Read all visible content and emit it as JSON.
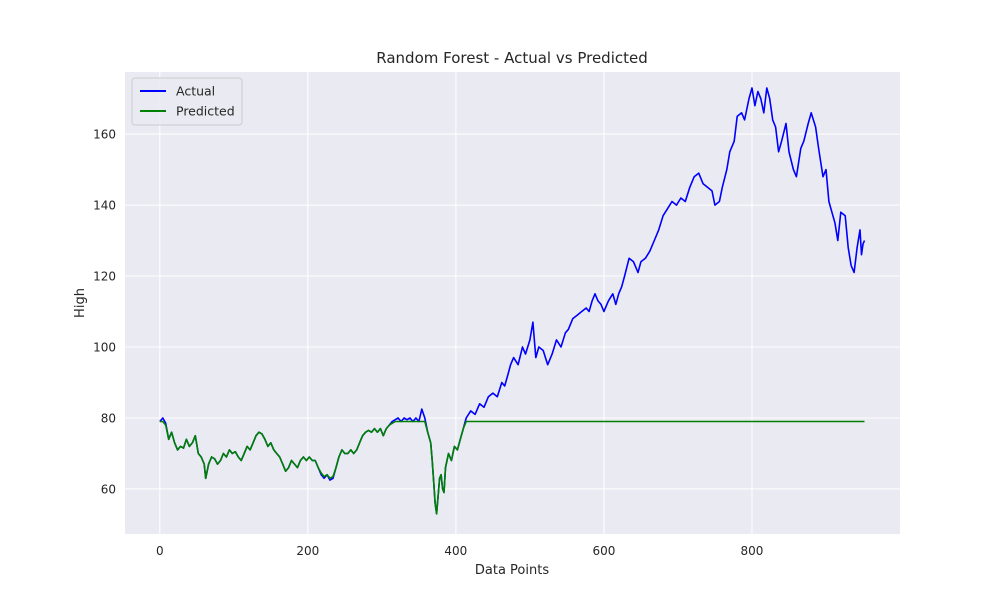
{
  "chart_data": {
    "type": "line",
    "title": "Random Forest - Actual vs Predicted",
    "xlabel": "Data Points",
    "ylabel": "High",
    "xlim": [
      -47,
      1000
    ],
    "ylim": [
      47.3,
      177.5
    ],
    "xticks": [
      0,
      200,
      400,
      600,
      800
    ],
    "yticks": [
      60,
      80,
      100,
      120,
      140,
      160
    ],
    "grid": true,
    "legend": "top-left",
    "colors": {
      "plot_bg": "#eaeaf2",
      "grid": "#ffffff",
      "text": "#262626"
    },
    "series": [
      {
        "name": "Actual",
        "color": "#0000ff",
        "points": [
          [
            0,
            79
          ],
          [
            4,
            80
          ],
          [
            8,
            78.5
          ],
          [
            12,
            74
          ],
          [
            16,
            76
          ],
          [
            20,
            73
          ],
          [
            24,
            71
          ],
          [
            28,
            72
          ],
          [
            32,
            71.5
          ],
          [
            36,
            74
          ],
          [
            40,
            72
          ],
          [
            44,
            73
          ],
          [
            48,
            75
          ],
          [
            52,
            70
          ],
          [
            56,
            69
          ],
          [
            60,
            67
          ],
          [
            62,
            63
          ],
          [
            66,
            67
          ],
          [
            70,
            69
          ],
          [
            74,
            68.5
          ],
          [
            78,
            67
          ],
          [
            82,
            68
          ],
          [
            86,
            70
          ],
          [
            90,
            69
          ],
          [
            94,
            71
          ],
          [
            98,
            70
          ],
          [
            102,
            70.5
          ],
          [
            106,
            69
          ],
          [
            110,
            68
          ],
          [
            114,
            70
          ],
          [
            118,
            72
          ],
          [
            122,
            71
          ],
          [
            126,
            73
          ],
          [
            130,
            75
          ],
          [
            134,
            76
          ],
          [
            138,
            75.5
          ],
          [
            142,
            74
          ],
          [
            146,
            72
          ],
          [
            150,
            73
          ],
          [
            154,
            71
          ],
          [
            158,
            70
          ],
          [
            162,
            69
          ],
          [
            166,
            67
          ],
          [
            170,
            65
          ],
          [
            174,
            66
          ],
          [
            178,
            68
          ],
          [
            182,
            67
          ],
          [
            186,
            66
          ],
          [
            190,
            68
          ],
          [
            194,
            69
          ],
          [
            198,
            68
          ],
          [
            202,
            69
          ],
          [
            206,
            68
          ],
          [
            210,
            68
          ],
          [
            214,
            66
          ],
          [
            218,
            64
          ],
          [
            222,
            63
          ],
          [
            226,
            64
          ],
          [
            230,
            62.5
          ],
          [
            234,
            63
          ],
          [
            238,
            66
          ],
          [
            242,
            69
          ],
          [
            246,
            71
          ],
          [
            250,
            70
          ],
          [
            254,
            70
          ],
          [
            258,
            71
          ],
          [
            262,
            70
          ],
          [
            266,
            71
          ],
          [
            270,
            73
          ],
          [
            274,
            75
          ],
          [
            278,
            76
          ],
          [
            282,
            76.5
          ],
          [
            286,
            76
          ],
          [
            290,
            77
          ],
          [
            294,
            76
          ],
          [
            298,
            77
          ],
          [
            302,
            75
          ],
          [
            306,
            77
          ],
          [
            310,
            78
          ],
          [
            314,
            79
          ],
          [
            318,
            79.5
          ],
          [
            322,
            80
          ],
          [
            326,
            79
          ],
          [
            330,
            80
          ],
          [
            334,
            79.5
          ],
          [
            338,
            80
          ],
          [
            342,
            79
          ],
          [
            346,
            80
          ],
          [
            350,
            79
          ],
          [
            354,
            82.5
          ],
          [
            358,
            80
          ],
          [
            362,
            76
          ],
          [
            366,
            73
          ],
          [
            368,
            68
          ],
          [
            370,
            62
          ],
          [
            372,
            56
          ],
          [
            374,
            53
          ],
          [
            376,
            58
          ],
          [
            378,
            63
          ],
          [
            380,
            64
          ],
          [
            382,
            60
          ],
          [
            384,
            59
          ],
          [
            386,
            66
          ],
          [
            390,
            70
          ],
          [
            394,
            68
          ],
          [
            398,
            72
          ],
          [
            402,
            71
          ],
          [
            406,
            74
          ],
          [
            410,
            77
          ],
          [
            414,
            80
          ],
          [
            420,
            82
          ],
          [
            426,
            81
          ],
          [
            432,
            84
          ],
          [
            438,
            83
          ],
          [
            444,
            86
          ],
          [
            450,
            87
          ],
          [
            456,
            86
          ],
          [
            462,
            90
          ],
          [
            466,
            89
          ],
          [
            470,
            92
          ],
          [
            474,
            95
          ],
          [
            478,
            97
          ],
          [
            484,
            95
          ],
          [
            490,
            100
          ],
          [
            494,
            98
          ],
          [
            500,
            102
          ],
          [
            504,
            107
          ],
          [
            508,
            97
          ],
          [
            512,
            100
          ],
          [
            518,
            99
          ],
          [
            524,
            95
          ],
          [
            530,
            98
          ],
          [
            536,
            102
          ],
          [
            542,
            100
          ],
          [
            548,
            104
          ],
          [
            552,
            105
          ],
          [
            558,
            108
          ],
          [
            564,
            109
          ],
          [
            570,
            110
          ],
          [
            576,
            111
          ],
          [
            580,
            110
          ],
          [
            584,
            113
          ],
          [
            588,
            115
          ],
          [
            592,
            113
          ],
          [
            596,
            112
          ],
          [
            600,
            110
          ],
          [
            606,
            113
          ],
          [
            612,
            115
          ],
          [
            616,
            112
          ],
          [
            620,
            115
          ],
          [
            624,
            117
          ],
          [
            628,
            120
          ],
          [
            634,
            125
          ],
          [
            640,
            124
          ],
          [
            646,
            121
          ],
          [
            650,
            124
          ],
          [
            656,
            125
          ],
          [
            662,
            127
          ],
          [
            668,
            130
          ],
          [
            674,
            133
          ],
          [
            680,
            137
          ],
          [
            686,
            139
          ],
          [
            692,
            141
          ],
          [
            698,
            140
          ],
          [
            704,
            142
          ],
          [
            710,
            141
          ],
          [
            716,
            145
          ],
          [
            722,
            148
          ],
          [
            728,
            149
          ],
          [
            734,
            146
          ],
          [
            740,
            145
          ],
          [
            746,
            144
          ],
          [
            750,
            140
          ],
          [
            756,
            141
          ],
          [
            760,
            145
          ],
          [
            766,
            150
          ],
          [
            770,
            155
          ],
          [
            776,
            158
          ],
          [
            780,
            165
          ],
          [
            786,
            166
          ],
          [
            790,
            164
          ],
          [
            796,
            170
          ],
          [
            800,
            173
          ],
          [
            804,
            168
          ],
          [
            808,
            172
          ],
          [
            812,
            170
          ],
          [
            816,
            166
          ],
          [
            820,
            173
          ],
          [
            824,
            170
          ],
          [
            828,
            164
          ],
          [
            832,
            162
          ],
          [
            836,
            155
          ],
          [
            840,
            158
          ],
          [
            846,
            163
          ],
          [
            850,
            155
          ],
          [
            856,
            150
          ],
          [
            860,
            148
          ],
          [
            866,
            156
          ],
          [
            870,
            158
          ],
          [
            876,
            163
          ],
          [
            880,
            166
          ],
          [
            886,
            162
          ],
          [
            890,
            156
          ],
          [
            896,
            148
          ],
          [
            900,
            150
          ],
          [
            904,
            141
          ],
          [
            908,
            138
          ],
          [
            912,
            135
          ],
          [
            916,
            130
          ],
          [
            920,
            138
          ],
          [
            926,
            137
          ],
          [
            930,
            128
          ],
          [
            934,
            123
          ],
          [
            938,
            121
          ],
          [
            942,
            128
          ],
          [
            946,
            133
          ],
          [
            948,
            126
          ],
          [
            950,
            129
          ],
          [
            952,
            130
          ]
        ]
      },
      {
        "name": "Predicted",
        "color": "#008000",
        "points": [
          [
            0,
            79
          ],
          [
            4,
            79
          ],
          [
            8,
            78
          ],
          [
            12,
            74
          ],
          [
            16,
            76
          ],
          [
            20,
            73
          ],
          [
            24,
            71
          ],
          [
            28,
            72
          ],
          [
            32,
            71.5
          ],
          [
            36,
            74
          ],
          [
            40,
            72
          ],
          [
            44,
            73
          ],
          [
            48,
            75
          ],
          [
            52,
            70
          ],
          [
            56,
            69
          ],
          [
            60,
            67
          ],
          [
            62,
            63
          ],
          [
            66,
            67
          ],
          [
            70,
            69
          ],
          [
            74,
            68.5
          ],
          [
            78,
            67
          ],
          [
            82,
            68
          ],
          [
            86,
            70
          ],
          [
            90,
            69
          ],
          [
            94,
            71
          ],
          [
            98,
            70
          ],
          [
            102,
            70.5
          ],
          [
            106,
            69
          ],
          [
            110,
            68
          ],
          [
            114,
            70
          ],
          [
            118,
            72
          ],
          [
            122,
            71
          ],
          [
            126,
            73
          ],
          [
            130,
            75
          ],
          [
            134,
            76
          ],
          [
            138,
            75.5
          ],
          [
            142,
            74
          ],
          [
            146,
            72
          ],
          [
            150,
            73
          ],
          [
            154,
            71
          ],
          [
            158,
            70
          ],
          [
            162,
            69
          ],
          [
            166,
            67
          ],
          [
            170,
            65
          ],
          [
            174,
            66
          ],
          [
            178,
            68
          ],
          [
            182,
            67
          ],
          [
            186,
            66
          ],
          [
            190,
            68
          ],
          [
            194,
            69
          ],
          [
            198,
            68
          ],
          [
            202,
            69
          ],
          [
            206,
            68
          ],
          [
            210,
            68
          ],
          [
            214,
            66
          ],
          [
            218,
            64.5
          ],
          [
            222,
            63.5
          ],
          [
            226,
            64
          ],
          [
            230,
            63
          ],
          [
            234,
            63.5
          ],
          [
            238,
            66
          ],
          [
            242,
            69
          ],
          [
            246,
            71
          ],
          [
            250,
            70
          ],
          [
            254,
            70
          ],
          [
            258,
            71
          ],
          [
            262,
            70
          ],
          [
            266,
            71
          ],
          [
            270,
            73
          ],
          [
            274,
            75
          ],
          [
            278,
            76
          ],
          [
            282,
            76.5
          ],
          [
            286,
            76
          ],
          [
            290,
            77
          ],
          [
            294,
            76
          ],
          [
            298,
            77
          ],
          [
            302,
            75
          ],
          [
            306,
            77
          ],
          [
            310,
            78
          ],
          [
            314,
            78.5
          ],
          [
            318,
            79
          ],
          [
            322,
            79
          ],
          [
            326,
            79
          ],
          [
            330,
            79
          ],
          [
            334,
            79
          ],
          [
            338,
            79
          ],
          [
            342,
            79
          ],
          [
            346,
            79
          ],
          [
            350,
            79
          ],
          [
            354,
            79
          ],
          [
            358,
            79
          ],
          [
            362,
            76
          ],
          [
            366,
            73
          ],
          [
            368,
            68
          ],
          [
            370,
            62
          ],
          [
            372,
            56
          ],
          [
            374,
            53
          ],
          [
            376,
            58
          ],
          [
            378,
            63
          ],
          [
            380,
            64
          ],
          [
            382,
            60
          ],
          [
            384,
            59
          ],
          [
            386,
            66
          ],
          [
            390,
            70
          ],
          [
            394,
            68
          ],
          [
            398,
            72
          ],
          [
            402,
            71
          ],
          [
            406,
            74
          ],
          [
            410,
            77
          ],
          [
            414,
            79
          ],
          [
            420,
            79
          ],
          [
            500,
            79
          ],
          [
            600,
            79
          ],
          [
            700,
            79
          ],
          [
            800,
            79
          ],
          [
            900,
            79
          ],
          [
            952,
            79
          ]
        ]
      }
    ]
  }
}
